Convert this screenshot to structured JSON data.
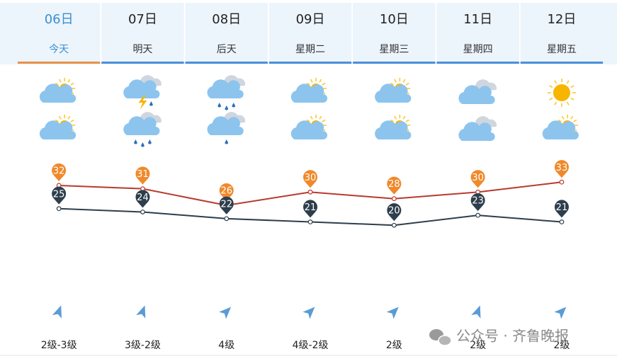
{
  "chart_data": {
    "type": "line",
    "categories": [
      "06日",
      "07日",
      "08日",
      "09日",
      "10日",
      "11日",
      "12日"
    ],
    "day_labels": [
      "今天",
      "明天",
      "后天",
      "星期二",
      "星期三",
      "星期四",
      "星期五"
    ],
    "wind": [
      "2级-3级",
      "3级-2级",
      "4级",
      "4级-2级",
      "2级",
      "2级",
      "2级"
    ],
    "series": [
      {
        "color": "#b83a2e",
        "marker_color": "#f0892a",
        "values": [
          32,
          31,
          26,
          30,
          28,
          30,
          33
        ]
      },
      {
        "color": "#2d3e4c",
        "marker_color": "#2d3e4c",
        "values": [
          25,
          24,
          22,
          21,
          20,
          23,
          21
        ]
      }
    ],
    "ylim": [
      0,
      45
    ]
  },
  "watermark": "公众号 · 齐鲁晚报"
}
